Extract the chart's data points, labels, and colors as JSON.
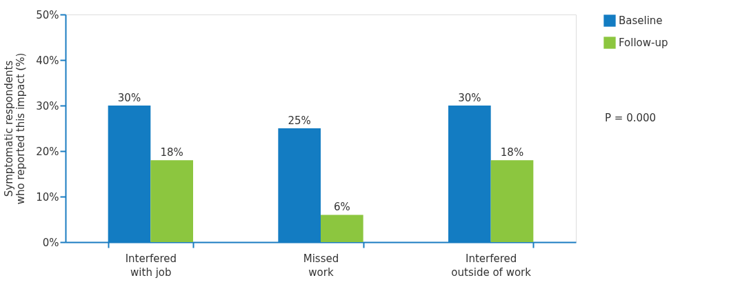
{
  "chart_data": {
    "type": "bar",
    "ylabel": "Symptomatic respondents\nwho reported this impact (%)",
    "categories": [
      "Interfered\nwith job",
      "Missed\nwork",
      "Interfered\noutside of work"
    ],
    "series": [
      {
        "name": "Baseline",
        "color": "#137cc2",
        "values": [
          30,
          25,
          30
        ],
        "value_labels": [
          "30%",
          "25%",
          "30%"
        ]
      },
      {
        "name": "Follow-up",
        "color": "#8cc63f",
        "values": [
          18,
          6,
          18
        ],
        "value_labels": [
          "18%",
          "6%",
          "18%"
        ]
      }
    ],
    "ylim": [
      0,
      50
    ],
    "yticks": [
      {
        "value": 0,
        "label": "0%"
      },
      {
        "value": 10,
        "label": "10%"
      },
      {
        "value": 20,
        "label": "20%"
      },
      {
        "value": 30,
        "label": "30%"
      },
      {
        "value": 40,
        "label": "40%"
      },
      {
        "value": 50,
        "label": "50%"
      }
    ],
    "legend": "top right",
    "grid": false,
    "annotations": [
      "P = 0.000"
    ]
  }
}
